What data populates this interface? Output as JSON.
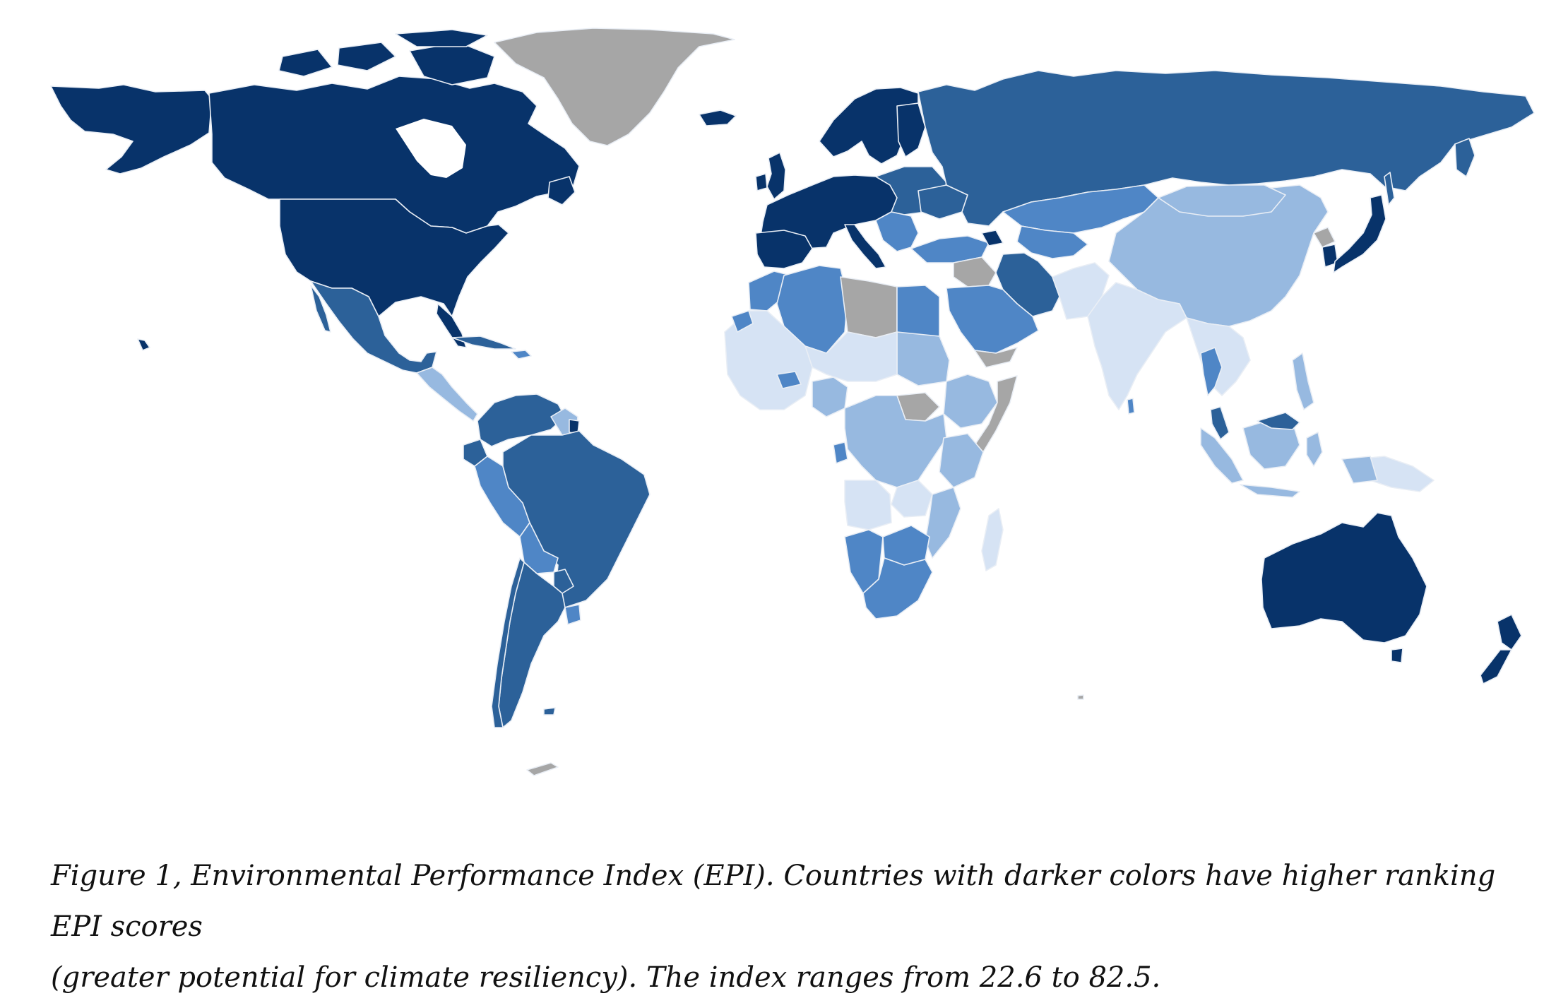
{
  "caption": {
    "line1": "Figure 1, Environmental Performance Index (EPI). Countries with darker colors have higher ranking EPI scores",
    "line2": "(greater potential for climate resiliency). The index ranges from 22.6 to 82.5."
  },
  "legend_scale": {
    "index_min": 22.6,
    "index_max": 82.5,
    "colors": {
      "highest": "#08336a",
      "high": "#2c6199",
      "upper_mid": "#4f86c6",
      "lower_mid": "#97b9e0",
      "lowest": "#d6e3f4",
      "no_data": "#a6a6a6"
    },
    "meaning": "darker = higher EPI score"
  },
  "regions": [
    {
      "name": "Canada",
      "class": "highest"
    },
    {
      "name": "United States",
      "class": "highest"
    },
    {
      "name": "Greenland",
      "class": "no_data"
    },
    {
      "name": "Mexico",
      "class": "high"
    },
    {
      "name": "Brazil",
      "class": "high"
    },
    {
      "name": "Argentina",
      "class": "high"
    },
    {
      "name": "Peru",
      "class": "upper_mid"
    },
    {
      "name": "Western Europe",
      "class": "highest"
    },
    {
      "name": "Russia",
      "class": "high"
    },
    {
      "name": "Kazakhstan",
      "class": "upper_mid"
    },
    {
      "name": "China",
      "class": "lower_mid"
    },
    {
      "name": "India",
      "class": "lowest"
    },
    {
      "name": "Japan",
      "class": "highest"
    },
    {
      "name": "Australia",
      "class": "highest"
    },
    {
      "name": "New Zealand",
      "class": "highest"
    },
    {
      "name": "Libya",
      "class": "no_data"
    },
    {
      "name": "South Sudan",
      "class": "no_data"
    },
    {
      "name": "Somalia",
      "class": "no_data"
    },
    {
      "name": "Egypt",
      "class": "upper_mid"
    },
    {
      "name": "Saudi Arabia",
      "class": "upper_mid"
    },
    {
      "name": "Iran",
      "class": "high"
    },
    {
      "name": "West Africa",
      "class": "lowest"
    },
    {
      "name": "Central Africa",
      "class": "lower_mid"
    },
    {
      "name": "Southern Africa",
      "class": "upper_mid"
    },
    {
      "name": "Madagascar",
      "class": "lowest"
    },
    {
      "name": "Indonesia",
      "class": "lower_mid"
    }
  ]
}
